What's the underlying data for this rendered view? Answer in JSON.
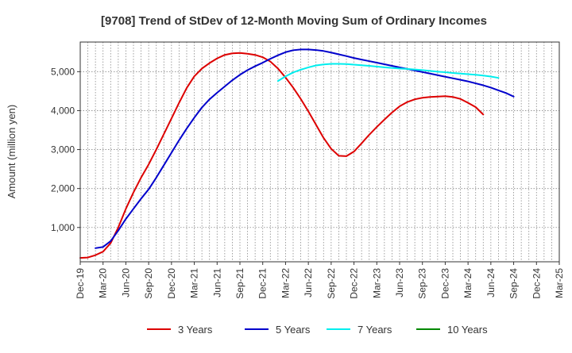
{
  "chart_data": {
    "type": "line",
    "title": "[9708]  Trend of StDev of 12-Month Moving Sum of Ordinary Incomes",
    "xlabel": "",
    "ylabel": "Amount (million yen)",
    "x_tick_labels": [
      "Dec-19",
      "Mar-20",
      "Jun-20",
      "Sep-20",
      "Dec-20",
      "Mar-21",
      "Jun-21",
      "Sep-21",
      "Dec-21",
      "Mar-22",
      "Jun-22",
      "Sep-22",
      "Dec-22",
      "Mar-23",
      "Jun-23",
      "Sep-23",
      "Dec-23",
      "Mar-24",
      "Jun-24",
      "Sep-24",
      "Dec-24",
      "Mar-25"
    ],
    "y_ticks": [
      1000,
      2000,
      3000,
      4000,
      5000
    ],
    "y_tick_labels": [
      "1,000",
      "2,000",
      "3,000",
      "4,000",
      "5,000"
    ],
    "ylim": [
      120,
      5760
    ],
    "grid": true,
    "legend_position": "bottom",
    "series": [
      {
        "name": "3 Years",
        "color": "#dd0000",
        "start_index": 0,
        "values": [
          220,
          230,
          290,
          380,
          600,
          1000,
          1480,
          1900,
          2280,
          2620,
          3000,
          3400,
          3800,
          4200,
          4580,
          4880,
          5080,
          5220,
          5340,
          5430,
          5470,
          5480,
          5460,
          5430,
          5370,
          5260,
          5080,
          4850,
          4590,
          4300,
          3980,
          3640,
          3300,
          3020,
          2840,
          2830,
          2950,
          3160,
          3380,
          3580,
          3770,
          3950,
          4110,
          4220,
          4290,
          4330,
          4350,
          4360,
          4370,
          4350,
          4300,
          4200,
          4090,
          3900
        ]
      },
      {
        "name": "5 Years",
        "color": "#0000cc",
        "start_index": 2,
        "values": [
          470,
          500,
          650,
          920,
          1220,
          1480,
          1740,
          1980,
          2280,
          2600,
          2920,
          3240,
          3540,
          3820,
          4080,
          4290,
          4460,
          4620,
          4780,
          4920,
          5040,
          5140,
          5230,
          5330,
          5420,
          5500,
          5550,
          5570,
          5570,
          5555,
          5530,
          5490,
          5445,
          5400,
          5350,
          5310,
          5270,
          5230,
          5190,
          5150,
          5110,
          5070,
          5030,
          4990,
          4950,
          4910,
          4870,
          4830,
          4790,
          4750,
          4700,
          4650,
          4590,
          4520,
          4450,
          4360
        ]
      },
      {
        "name": "7 Years",
        "color": "#00eeee",
        "start_index": 26,
        "values": [
          4760,
          4880,
          4980,
          5050,
          5110,
          5160,
          5185,
          5200,
          5200,
          5195,
          5180,
          5165,
          5150,
          5130,
          5110,
          5095,
          5080,
          5070,
          5055,
          5040,
          5020,
          5000,
          4985,
          4965,
          4950,
          4935,
          4920,
          4900,
          4875,
          4840
        ]
      },
      {
        "name": "10 Years",
        "color": "#008800",
        "start_index": 0,
        "values": []
      }
    ]
  }
}
